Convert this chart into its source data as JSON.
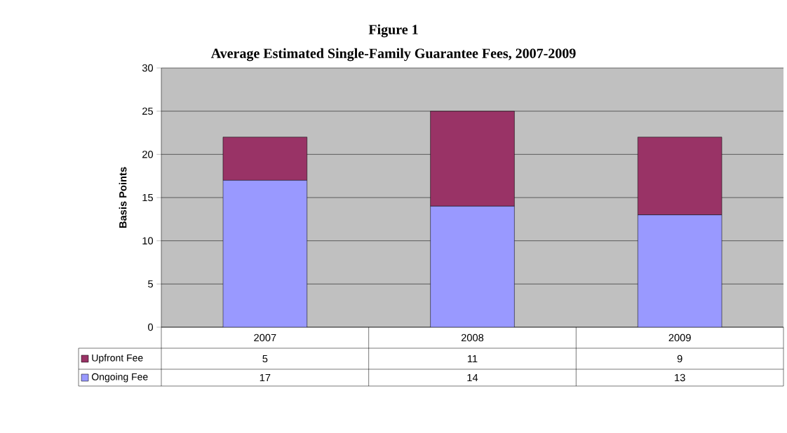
{
  "chart_data": {
    "type": "bar",
    "title": "Figure 1",
    "subtitle": "Average Estimated Single-Family Guarantee Fees, 2007-2009",
    "ylabel": "Basis Points",
    "categories": [
      "2007",
      "2008",
      "2009"
    ],
    "stacked": true,
    "series": [
      {
        "name": "Ongoing Fee",
        "color": "#9999ff",
        "values": [
          17,
          14,
          13
        ]
      },
      {
        "name": "Upfront Fee",
        "color": "#993366",
        "values": [
          5,
          11,
          9
        ]
      }
    ],
    "ylim": [
      0,
      30
    ],
    "yticks": [
      0,
      5,
      10,
      15,
      20,
      25,
      30
    ],
    "grid": "y",
    "data_labels": true,
    "legend": "bottom"
  }
}
